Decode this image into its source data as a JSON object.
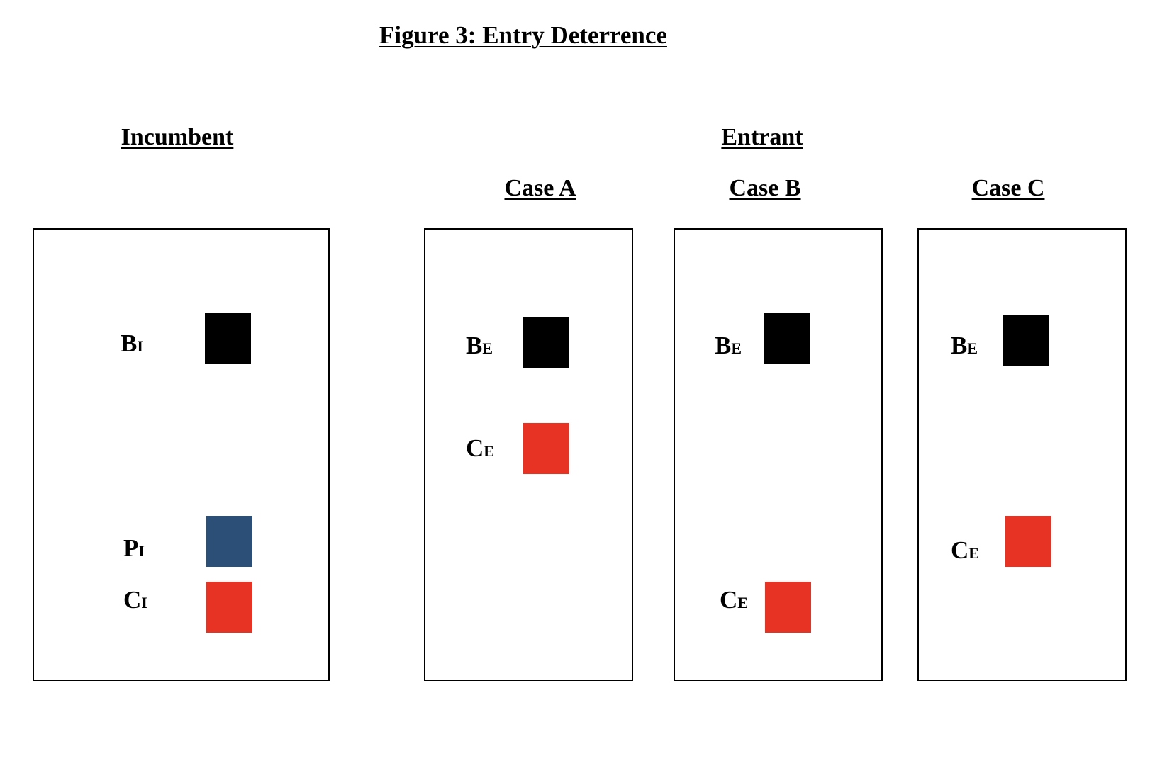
{
  "figure": {
    "title": "Figure 3: Entry Deterrence"
  },
  "headings": {
    "incumbent": "Incumbent",
    "entrant": "Entrant"
  },
  "cases": {
    "a": "Case A",
    "b": "Case B",
    "c": "Case C"
  },
  "colors": {
    "benefit": "#000000",
    "price": "#2c4f77",
    "cost": "#e63323"
  },
  "panels": {
    "incumbent": {
      "items": [
        {
          "main": "B",
          "sub": "I",
          "color_key": "benefit"
        },
        {
          "main": "P",
          "sub": "I",
          "color_key": "price"
        },
        {
          "main": "C",
          "sub": "I",
          "color_key": "cost"
        }
      ]
    },
    "case_a": {
      "items": [
        {
          "main": "B",
          "sub": "E",
          "color_key": "benefit"
        },
        {
          "main": "C",
          "sub": "E",
          "color_key": "cost"
        }
      ]
    },
    "case_b": {
      "items": [
        {
          "main": "B",
          "sub": "E",
          "color_key": "benefit"
        },
        {
          "main": "C",
          "sub": "E",
          "color_key": "cost"
        }
      ]
    },
    "case_c": {
      "items": [
        {
          "main": "B",
          "sub": "E",
          "color_key": "benefit"
        },
        {
          "main": "C",
          "sub": "E",
          "color_key": "cost"
        }
      ]
    }
  }
}
